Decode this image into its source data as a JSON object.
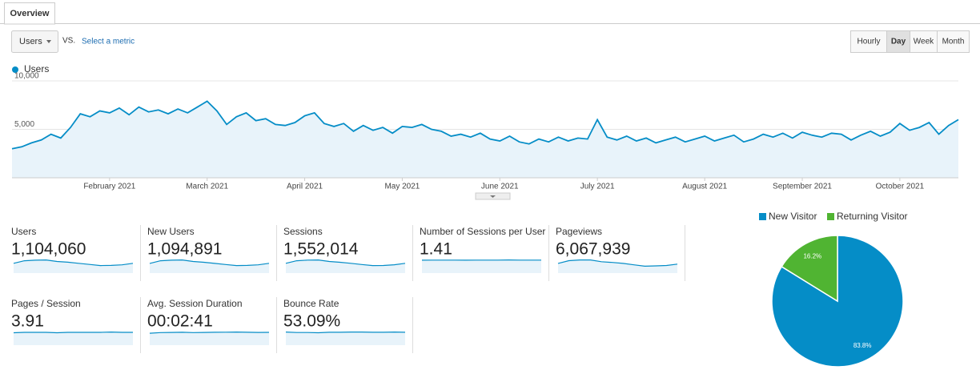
{
  "tabs": [
    "Overview"
  ],
  "toolbar": {
    "metric": "Users",
    "vs": "VS.",
    "compare_link": "Select a metric",
    "intervals": [
      "Hourly",
      "Day",
      "Week",
      "Month"
    ],
    "selected_interval": "Day"
  },
  "chart_data": [
    {
      "type": "line",
      "legend": "top-left",
      "grid": true,
      "categories": [
        null,
        null,
        null,
        null,
        null,
        null,
        null,
        null,
        null,
        null,
        "February 2021",
        null,
        null,
        null,
        null,
        null,
        null,
        null,
        null,
        null,
        "March 2021",
        null,
        null,
        null,
        null,
        null,
        null,
        null,
        null,
        null,
        "April 2021",
        null,
        null,
        null,
        null,
        null,
        null,
        null,
        null,
        null,
        "May 2021",
        null,
        null,
        null,
        null,
        null,
        null,
        null,
        null,
        null,
        "June 2021",
        null,
        null,
        null,
        null,
        null,
        null,
        null,
        null,
        null,
        "July 2021",
        null,
        null,
        null,
        null,
        null,
        null,
        null,
        null,
        null,
        null,
        "August 2021",
        null,
        null,
        null,
        null,
        null,
        null,
        null,
        null,
        null,
        "September 2021",
        null,
        null,
        null,
        null,
        null,
        null,
        null,
        null,
        null,
        "October 2021",
        null,
        null,
        null,
        null,
        null,
        null
      ],
      "series": [
        {
          "name": "Users",
          "color": "#058dc7",
          "values": [
            3000,
            3200,
            3600,
            3900,
            4500,
            4100,
            5200,
            6600,
            6300,
            6900,
            6700,
            7200,
            6500,
            7300,
            6800,
            7000,
            6600,
            7100,
            6700,
            7300,
            7900,
            6900,
            5500,
            6300,
            6700,
            5900,
            6100,
            5500,
            5400,
            5700,
            6400,
            6700,
            5600,
            5300,
            5600,
            4800,
            5400,
            4900,
            5200,
            4600,
            5300,
            5200,
            5500,
            5000,
            4800,
            4300,
            4500,
            4200,
            4600,
            4000,
            3800,
            4300,
            3700,
            3500,
            4000,
            3700,
            4200,
            3800,
            4100,
            4000,
            6000,
            4200,
            3900,
            4300,
            3800,
            4100,
            3600,
            3900,
            4200,
            3700,
            4000,
            4300,
            3800,
            4100,
            4400,
            3700,
            4000,
            4500,
            4200,
            4600,
            4100,
            4700,
            4400,
            4200,
            4600,
            4500,
            3900,
            4400,
            4800,
            4300,
            4700,
            5600,
            4900,
            5200,
            5700,
            4500,
            5400,
            6000
          ]
        }
      ],
      "ylim": [
        0,
        10000
      ],
      "yticks": [
        {
          "value": 5000,
          "label": "5,000"
        },
        {
          "value": 10000,
          "label": "10,000"
        }
      ]
    },
    {
      "type": "pie",
      "legend": "top",
      "categories": [
        "New Visitor",
        "Returning Visitor"
      ],
      "values": [
        83.8,
        16.2
      ],
      "value_labels": [
        "83.8%",
        "16.2%"
      ],
      "colors": [
        "#058dc7",
        "#50b432"
      ]
    }
  ],
  "metrics": [
    {
      "label": "Users",
      "value": "1,104,060",
      "sparkline": [
        5200,
        6600,
        6900,
        7000,
        6200,
        5800,
        5200,
        4600,
        4000,
        4100,
        4400,
        5200
      ]
    },
    {
      "label": "New Users",
      "value": "1,094,891",
      "sparkline": [
        5100,
        6500,
        6800,
        6900,
        6100,
        5700,
        5100,
        4500,
        3950,
        4050,
        4350,
        5150
      ]
    },
    {
      "label": "Sessions",
      "value": "1,552,014",
      "sparkline": [
        7300,
        9200,
        9700,
        9800,
        8700,
        8100,
        7300,
        6400,
        5600,
        5700,
        6200,
        7300
      ]
    },
    {
      "label": "Number of Sessions per User",
      "value": "1.41",
      "sparkline": [
        1.4,
        1.41,
        1.41,
        1.41,
        1.4,
        1.41,
        1.41,
        1.41,
        1.42,
        1.41,
        1.41,
        1.41
      ]
    },
    {
      "label": "Pageviews",
      "value": "6,067,939",
      "sparkline": [
        28000,
        36000,
        38000,
        38000,
        33000,
        31000,
        28000,
        24000,
        20000,
        21000,
        22000,
        26000
      ]
    },
    {
      "label": "Pages / Session",
      "value": "3.91",
      "sparkline": [
        3.8,
        3.9,
        3.9,
        3.9,
        3.8,
        3.9,
        3.9,
        3.9,
        3.9,
        4.0,
        3.9,
        3.9
      ]
    },
    {
      "label": "Avg. Session Duration",
      "value": "00:02:41",
      "sparkline": [
        150,
        158,
        160,
        162,
        158,
        160,
        162,
        163,
        165,
        162,
        160,
        161
      ]
    },
    {
      "label": "Bounce Rate",
      "value": "53.09%",
      "sparkline": [
        54,
        52,
        52,
        51,
        53,
        53,
        54,
        54,
        53,
        53,
        54,
        53
      ]
    }
  ]
}
